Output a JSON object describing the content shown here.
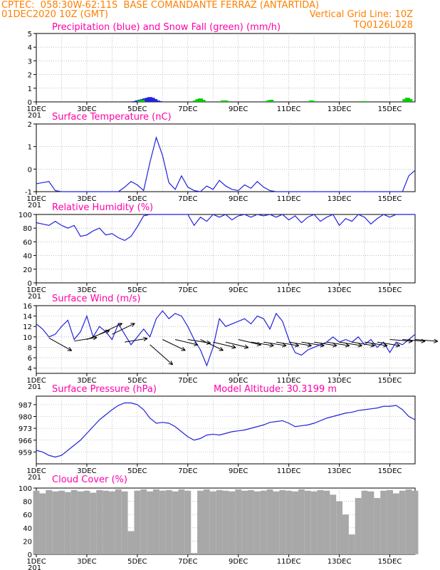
{
  "header": {
    "line1_left": "CPTEC:  058:30W-62:11S  BASE COMANDANTE FERRAZ (ANTARTIDA)",
    "line2_left": "01DEC2020 10Z (GMT)",
    "line2_right": "Vertical Grid Line: 10Z",
    "line3_right": "TQ0126L028",
    "color": "#ff7f00"
  },
  "colors": {
    "title": "#ff00aa",
    "line": "#2222dd",
    "snow": "#00cc00",
    "cloud": "#a8a8a8",
    "grid": "#9a9a9a"
  },
  "x_axis": {
    "date_labels": [
      "1DEC",
      "3DEC",
      "5DEC",
      "7DEC",
      "9DEC",
      "11DEC",
      "13DEC",
      "15DEC"
    ],
    "year_fragment": "201",
    "day_range": [
      0,
      15
    ],
    "grid_step_days": 1
  },
  "chart_data": [
    {
      "id": "precip",
      "type": "bar",
      "title": "Precipitation (blue) and Snow Fall (green) (mm/h)",
      "ylim": [
        0,
        5
      ],
      "yticks": [
        0,
        1,
        2,
        3,
        4,
        5
      ],
      "series": [
        {
          "color": "blue",
          "x": [
            3.9,
            4.0,
            4.1,
            4.2,
            4.3,
            4.4,
            4.5,
            4.6,
            4.7,
            4.8,
            4.9
          ],
          "values": [
            0.05,
            0.1,
            0.15,
            0.2,
            0.25,
            0.3,
            0.35,
            0.3,
            0.2,
            0.1,
            0.05
          ]
        },
        {
          "color": "green",
          "x": [
            4.1,
            4.2,
            6.3,
            6.4,
            6.5,
            6.6,
            7.4,
            7.5,
            9.2,
            9.3,
            10.8,
            10.9,
            11.0,
            12.9,
            13.0,
            14.6,
            14.7,
            14.8
          ],
          "values": [
            0.1,
            0.15,
            0.1,
            0.2,
            0.25,
            0.15,
            0.1,
            0.1,
            0.1,
            0.15,
            0.05,
            0.1,
            0.05,
            0.05,
            0.05,
            0.2,
            0.3,
            0.2
          ]
        }
      ]
    },
    {
      "id": "temp",
      "type": "line",
      "title": "Surface Temperature (nC)",
      "ylim": [
        -1,
        2
      ],
      "yticks": [
        -1,
        0,
        1,
        2
      ],
      "x": [
        0.0,
        0.25,
        0.5,
        0.75,
        1.0,
        1.25,
        1.5,
        1.75,
        2.0,
        2.25,
        2.5,
        2.75,
        3.0,
        3.25,
        3.5,
        3.75,
        4.0,
        4.25,
        4.5,
        4.75,
        5.0,
        5.25,
        5.5,
        5.75,
        6.0,
        6.25,
        6.5,
        6.75,
        7.0,
        7.25,
        7.5,
        7.75,
        8.0,
        8.25,
        8.5,
        8.75,
        9.0,
        9.25,
        9.5,
        9.75,
        10.0,
        10.25,
        10.5,
        10.75,
        11.0,
        11.25,
        11.5,
        11.75,
        12.0,
        12.25,
        12.5,
        12.75,
        13.0,
        13.25,
        13.5,
        13.75,
        14.0,
        14.25,
        14.5,
        14.75,
        15.0
      ],
      "values": [
        -0.65,
        -0.6,
        -0.55,
        -0.95,
        -1.0,
        -1.0,
        -1.0,
        -1.0,
        -1.0,
        -1.0,
        -1.0,
        -1.0,
        -1.0,
        -1.0,
        -0.8,
        -0.55,
        -0.7,
        -0.95,
        0.3,
        1.4,
        0.6,
        -0.6,
        -0.9,
        -0.3,
        -0.8,
        -0.95,
        -1.0,
        -0.75,
        -0.9,
        -0.5,
        -0.75,
        -0.9,
        -0.95,
        -0.7,
        -0.85,
        -0.55,
        -0.8,
        -0.95,
        -1.0,
        -1.0,
        -1.0,
        -1.0,
        -1.0,
        -1.0,
        -1.0,
        -1.0,
        -1.0,
        -1.0,
        -1.0,
        -1.0,
        -1.0,
        -1.0,
        -1.0,
        -1.0,
        -1.0,
        -1.0,
        -1.0,
        -1.0,
        -1.0,
        -0.3,
        -0.05
      ]
    },
    {
      "id": "rh",
      "type": "line",
      "title": "Relative Humidity (%)",
      "ylim": [
        0,
        100
      ],
      "yticks": [
        0,
        20,
        40,
        60,
        80,
        100
      ],
      "x": [
        0.0,
        0.25,
        0.5,
        0.75,
        1.0,
        1.25,
        1.5,
        1.75,
        2.0,
        2.25,
        2.5,
        2.75,
        3.0,
        3.25,
        3.5,
        3.75,
        4.0,
        4.25,
        4.5,
        4.75,
        5.0,
        5.25,
        5.5,
        5.75,
        6.0,
        6.25,
        6.5,
        6.75,
        7.0,
        7.25,
        7.5,
        7.75,
        8.0,
        8.25,
        8.5,
        8.75,
        9.0,
        9.25,
        9.5,
        9.75,
        10.0,
        10.25,
        10.5,
        10.75,
        11.0,
        11.25,
        11.5,
        11.75,
        12.0,
        12.25,
        12.5,
        12.75,
        13.0,
        13.25,
        13.5,
        13.75,
        14.0,
        14.25,
        14.5,
        14.75,
        15.0
      ],
      "values": [
        88,
        86,
        84,
        90,
        84,
        80,
        84,
        68,
        70,
        76,
        80,
        70,
        72,
        66,
        62,
        68,
        82,
        98,
        100,
        100,
        100,
        100,
        100,
        100,
        100,
        84,
        96,
        90,
        100,
        96,
        100,
        92,
        98,
        100,
        96,
        100,
        98,
        100,
        96,
        100,
        92,
        98,
        88,
        96,
        100,
        90,
        96,
        100,
        84,
        94,
        90,
        100,
        96,
        86,
        94,
        100,
        96,
        100,
        100,
        100,
        100
      ]
    },
    {
      "id": "wind",
      "type": "line",
      "title": "Surface Wind (m/s)",
      "ylim": [
        3,
        16
      ],
      "yticks": [
        4,
        6,
        8,
        10,
        12,
        14,
        16
      ],
      "x": [
        0.0,
        0.25,
        0.5,
        0.75,
        1.0,
        1.25,
        1.5,
        1.75,
        2.0,
        2.25,
        2.5,
        2.75,
        3.0,
        3.25,
        3.5,
        3.75,
        4.0,
        4.25,
        4.5,
        4.75,
        5.0,
        5.25,
        5.5,
        5.75,
        6.0,
        6.25,
        6.5,
        6.75,
        7.0,
        7.25,
        7.5,
        7.75,
        8.0,
        8.25,
        8.5,
        8.75,
        9.0,
        9.25,
        9.5,
        9.75,
        10.0,
        10.25,
        10.5,
        10.75,
        11.0,
        11.25,
        11.5,
        11.75,
        12.0,
        12.25,
        12.5,
        12.75,
        13.0,
        13.25,
        13.5,
        13.75,
        14.0,
        14.25,
        14.5,
        14.75,
        15.0
      ],
      "values": [
        12.5,
        11.5,
        10.0,
        10.5,
        12.0,
        13.2,
        9.5,
        11.0,
        14.0,
        10.0,
        12.0,
        11.0,
        9.5,
        12.5,
        10.5,
        8.5,
        10.0,
        11.5,
        10.0,
        13.5,
        15.0,
        13.5,
        14.5,
        14.0,
        12.0,
        9.5,
        7.5,
        4.5,
        8.0,
        13.5,
        12.0,
        12.5,
        13.0,
        13.5,
        12.5,
        14.0,
        13.5,
        11.5,
        14.5,
        13.0,
        9.5,
        7.0,
        6.5,
        7.5,
        8.0,
        8.5,
        9.0,
        10.0,
        9.0,
        9.5,
        9.0,
        10.0,
        8.5,
        9.5,
        8.0,
        9.0,
        7.0,
        9.0,
        8.5,
        9.5,
        10.5
      ],
      "vectors": [
        {
          "x": 0.5,
          "v": 9.8,
          "dx": 1.0,
          "dy": -3.5
        },
        {
          "x": 1.5,
          "v": 9.2,
          "dx": 1.0,
          "dy": 1.0
        },
        {
          "x": 2.0,
          "v": 9.5,
          "dx": 1.0,
          "dy": 2.5
        },
        {
          "x": 2.5,
          "v": 10.5,
          "dx": 1.0,
          "dy": 3.0
        },
        {
          "x": 3.0,
          "v": 10.5,
          "dx": 1.0,
          "dy": 3.0
        },
        {
          "x": 3.5,
          "v": 9.0,
          "dx": 1.0,
          "dy": 1.0
        },
        {
          "x": 4.5,
          "v": 8.5,
          "dx": 1.0,
          "dy": -5.5
        },
        {
          "x": 5.0,
          "v": 9.5,
          "dx": 1.0,
          "dy": -3.0
        },
        {
          "x": 5.5,
          "v": 9.5,
          "dx": 1.0,
          "dy": -1.5
        },
        {
          "x": 6.0,
          "v": 9.5,
          "dx": 1.0,
          "dy": -1.0
        },
        {
          "x": 6.5,
          "v": 9.5,
          "dx": 1.0,
          "dy": -3.0
        },
        {
          "x": 7.0,
          "v": 9.0,
          "dx": 1.0,
          "dy": -1.5
        },
        {
          "x": 7.5,
          "v": 9.0,
          "dx": 1.0,
          "dy": -1.5
        },
        {
          "x": 8.0,
          "v": 9.5,
          "dx": 1.0,
          "dy": -1.5
        },
        {
          "x": 8.5,
          "v": 9.0,
          "dx": 1.0,
          "dy": -1.0
        },
        {
          "x": 9.0,
          "v": 9.0,
          "dx": 1.0,
          "dy": -1.0
        },
        {
          "x": 9.5,
          "v": 9.0,
          "dx": 1.0,
          "dy": -1.0
        },
        {
          "x": 10.0,
          "v": 9.0,
          "dx": 1.0,
          "dy": -1.0
        },
        {
          "x": 10.5,
          "v": 9.0,
          "dx": 1.0,
          "dy": -1.0
        },
        {
          "x": 11.0,
          "v": 9.0,
          "dx": 1.0,
          "dy": -1.0
        },
        {
          "x": 11.5,
          "v": 9.0,
          "dx": 1.0,
          "dy": -1.0
        },
        {
          "x": 12.0,
          "v": 9.0,
          "dx": 1.0,
          "dy": -1.0
        },
        {
          "x": 12.5,
          "v": 9.0,
          "dx": 1.0,
          "dy": -1.0
        },
        {
          "x": 13.0,
          "v": 9.0,
          "dx": 1.0,
          "dy": -1.0
        },
        {
          "x": 13.5,
          "v": 9.0,
          "dx": 1.0,
          "dy": -1.0
        },
        {
          "x": 14.0,
          "v": 9.5,
          "dx": 1.0,
          "dy": -0.5
        },
        {
          "x": 14.5,
          "v": 9.5,
          "dx": 1.0,
          "dy": -0.5
        },
        {
          "x": 15.0,
          "v": 9.5,
          "dx": 1.0,
          "dy": -0.5
        }
      ]
    },
    {
      "id": "pressure",
      "type": "line",
      "title": "Surface Pressure (hPa)",
      "subtitle": "Model Altitude: 30.3199 m",
      "ylim": [
        952,
        992
      ],
      "yticks": [
        959,
        966,
        973,
        980,
        987
      ],
      "x": [
        0.0,
        0.25,
        0.5,
        0.75,
        1.0,
        1.25,
        1.5,
        1.75,
        2.0,
        2.25,
        2.5,
        2.75,
        3.0,
        3.25,
        3.5,
        3.75,
        4.0,
        4.25,
        4.5,
        4.75,
        5.0,
        5.25,
        5.5,
        5.75,
        6.0,
        6.25,
        6.5,
        6.75,
        7.0,
        7.25,
        7.5,
        7.75,
        8.0,
        8.25,
        8.5,
        8.75,
        9.0,
        9.25,
        9.5,
        9.75,
        10.0,
        10.25,
        10.5,
        10.75,
        11.0,
        11.25,
        11.5,
        11.75,
        12.0,
        12.25,
        12.5,
        12.75,
        13.0,
        13.25,
        13.5,
        13.75,
        14.0,
        14.25,
        14.5,
        14.75,
        15.0
      ],
      "values": [
        960,
        959,
        957,
        956,
        957,
        960,
        963,
        966,
        970,
        974,
        978,
        981,
        984,
        986.5,
        988,
        988,
        987,
        984,
        979,
        976,
        976.5,
        976,
        974,
        971,
        968,
        966,
        967,
        969,
        969.5,
        969,
        970,
        971,
        971.5,
        972,
        973,
        974,
        975,
        976.5,
        977,
        977.5,
        976,
        974,
        974.5,
        975,
        976,
        977.5,
        979,
        980,
        981,
        982,
        982.5,
        983.5,
        984,
        984.5,
        985,
        986,
        986,
        986.5,
        984,
        980,
        978
      ]
    },
    {
      "id": "cloud",
      "type": "area",
      "title": "Cloud Cover (%)",
      "ylim": [
        0,
        100
      ],
      "yticks": [
        0,
        20,
        40,
        60,
        80,
        100
      ],
      "x": [
        0.0,
        0.25,
        0.5,
        0.75,
        1.0,
        1.25,
        1.5,
        1.75,
        2.0,
        2.25,
        2.5,
        2.75,
        3.0,
        3.25,
        3.5,
        3.75,
        4.0,
        4.25,
        4.5,
        4.75,
        5.0,
        5.25,
        5.5,
        5.75,
        6.0,
        6.25,
        6.5,
        6.75,
        7.0,
        7.25,
        7.5,
        7.75,
        8.0,
        8.25,
        8.5,
        8.75,
        9.0,
        9.25,
        9.5,
        9.75,
        10.0,
        10.25,
        10.5,
        10.75,
        11.0,
        11.25,
        11.5,
        11.75,
        12.0,
        12.25,
        12.5,
        12.75,
        13.0,
        13.25,
        13.5,
        13.75,
        14.0,
        14.25,
        14.5,
        14.75,
        15.0
      ],
      "values": [
        96,
        92,
        97,
        95,
        96,
        94,
        97,
        95,
        96,
        93,
        97,
        96,
        95,
        98,
        95,
        35,
        96,
        98,
        95,
        98,
        96,
        97,
        95,
        98,
        96,
        2,
        96,
        98,
        95,
        97,
        96,
        95,
        98,
        96,
        97,
        95,
        96,
        98,
        95,
        97,
        96,
        95,
        98,
        96,
        95,
        97,
        96,
        90,
        80,
        60,
        30,
        85,
        96,
        95,
        85,
        96,
        97,
        92,
        96,
        98,
        96
      ]
    }
  ]
}
